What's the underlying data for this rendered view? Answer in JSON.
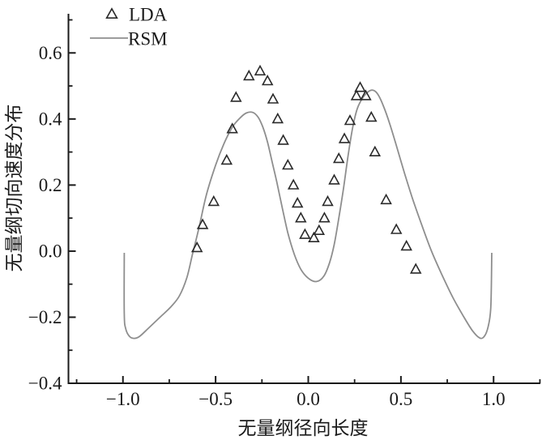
{
  "chart_data": {
    "type": "line",
    "title": "",
    "xlabel": "无量纲径向长度",
    "ylabel": "无量纲切向速度分布",
    "xlim": [
      -1.294,
      1.2525
    ],
    "ylim": [
      -0.4,
      0.716
    ],
    "grid": false,
    "axis_color": "#1a1a1a",
    "x_major_ticks": [
      -1.0,
      -0.5,
      0.0,
      0.5,
      1.0
    ],
    "x_major_tick_labels": [
      "−1.0",
      "−0.5",
      "0.0",
      "0.5",
      "1.0"
    ],
    "x_minor_ticks": [
      -1.25,
      -0.75,
      -0.25,
      0.25,
      0.75,
      1.25
    ],
    "y_major_ticks": [
      -0.4,
      -0.2,
      0.0,
      0.2,
      0.4,
      0.6
    ],
    "y_major_tick_labels": [
      "−0.4",
      "−0.2",
      "0.0",
      "0.2",
      "0.4",
      "0.6"
    ],
    "y_minor_ticks": [
      -0.3,
      -0.1,
      0.1,
      0.3,
      0.5,
      0.7
    ],
    "legend": {
      "position": "top-left-inside",
      "entries": [
        {
          "label": "LDA",
          "marker": "hollow-triangle-up"
        },
        {
          "label": "RSM",
          "marker": "line"
        }
      ]
    },
    "series": [
      {
        "name": "LDA",
        "type": "scatter",
        "marker": "hollow-triangle-up",
        "color": "#2a2a2a",
        "points": [
          [
            -0.6,
            0.01
          ],
          [
            -0.57,
            0.08
          ],
          [
            -0.51,
            0.15
          ],
          [
            -0.44,
            0.275
          ],
          [
            -0.41,
            0.37
          ],
          [
            -0.39,
            0.465
          ],
          [
            -0.32,
            0.53
          ],
          [
            -0.26,
            0.545
          ],
          [
            -0.22,
            0.515
          ],
          [
            -0.19,
            0.46
          ],
          [
            -0.165,
            0.4
          ],
          [
            -0.135,
            0.335
          ],
          [
            -0.11,
            0.26
          ],
          [
            -0.08,
            0.2
          ],
          [
            -0.058,
            0.145
          ],
          [
            -0.04,
            0.1
          ],
          [
            -0.018,
            0.05
          ],
          [
            0.03,
            0.04
          ],
          [
            0.058,
            0.062
          ],
          [
            0.087,
            0.1
          ],
          [
            0.105,
            0.15
          ],
          [
            0.14,
            0.215
          ],
          [
            0.165,
            0.28
          ],
          [
            0.195,
            0.34
          ],
          [
            0.225,
            0.395
          ],
          [
            0.26,
            0.47
          ],
          [
            0.28,
            0.495
          ],
          [
            0.31,
            0.47
          ],
          [
            0.34,
            0.405
          ],
          [
            0.36,
            0.3
          ],
          [
            0.42,
            0.155
          ],
          [
            0.475,
            0.065
          ],
          [
            0.53,
            0.015
          ],
          [
            0.58,
            -0.055
          ]
        ]
      },
      {
        "name": "RSM",
        "type": "line",
        "color": "#8e8e8e",
        "points": [
          [
            -0.993,
            -0.005
          ],
          [
            -0.993,
            -0.19
          ],
          [
            -0.985,
            -0.235
          ],
          [
            -0.965,
            -0.258
          ],
          [
            -0.94,
            -0.264
          ],
          [
            -0.91,
            -0.258
          ],
          [
            -0.86,
            -0.232
          ],
          [
            -0.8,
            -0.2
          ],
          [
            -0.74,
            -0.168
          ],
          [
            -0.695,
            -0.135
          ],
          [
            -0.655,
            -0.08
          ],
          [
            -0.625,
            -0.01
          ],
          [
            -0.59,
            0.07
          ],
          [
            -0.55,
            0.17
          ],
          [
            -0.5,
            0.26
          ],
          [
            -0.455,
            0.325
          ],
          [
            -0.41,
            0.375
          ],
          [
            -0.37,
            0.402
          ],
          [
            -0.335,
            0.418
          ],
          [
            -0.3,
            0.42
          ],
          [
            -0.27,
            0.405
          ],
          [
            -0.245,
            0.375
          ],
          [
            -0.22,
            0.33
          ],
          [
            -0.195,
            0.27
          ],
          [
            -0.17,
            0.21
          ],
          [
            -0.14,
            0.13
          ],
          [
            -0.11,
            0.055
          ],
          [
            -0.075,
            -0.01
          ],
          [
            -0.04,
            -0.055
          ],
          [
            0.0,
            -0.082
          ],
          [
            0.045,
            -0.092
          ],
          [
            0.085,
            -0.075
          ],
          [
            0.115,
            -0.035
          ],
          [
            0.14,
            0.02
          ],
          [
            0.165,
            0.1
          ],
          [
            0.19,
            0.19
          ],
          [
            0.215,
            0.29
          ],
          [
            0.24,
            0.375
          ],
          [
            0.265,
            0.432
          ],
          [
            0.295,
            0.465
          ],
          [
            0.325,
            0.483
          ],
          [
            0.35,
            0.487
          ],
          [
            0.375,
            0.475
          ],
          [
            0.405,
            0.44
          ],
          [
            0.44,
            0.385
          ],
          [
            0.475,
            0.32
          ],
          [
            0.52,
            0.235
          ],
          [
            0.565,
            0.155
          ],
          [
            0.615,
            0.075
          ],
          [
            0.665,
            0.0
          ],
          [
            0.72,
            -0.07
          ],
          [
            0.78,
            -0.14
          ],
          [
            0.835,
            -0.195
          ],
          [
            0.885,
            -0.24
          ],
          [
            0.925,
            -0.263
          ],
          [
            0.95,
            -0.258
          ],
          [
            0.97,
            -0.23
          ],
          [
            0.985,
            -0.17
          ],
          [
            0.99,
            -0.005
          ]
        ]
      }
    ]
  }
}
